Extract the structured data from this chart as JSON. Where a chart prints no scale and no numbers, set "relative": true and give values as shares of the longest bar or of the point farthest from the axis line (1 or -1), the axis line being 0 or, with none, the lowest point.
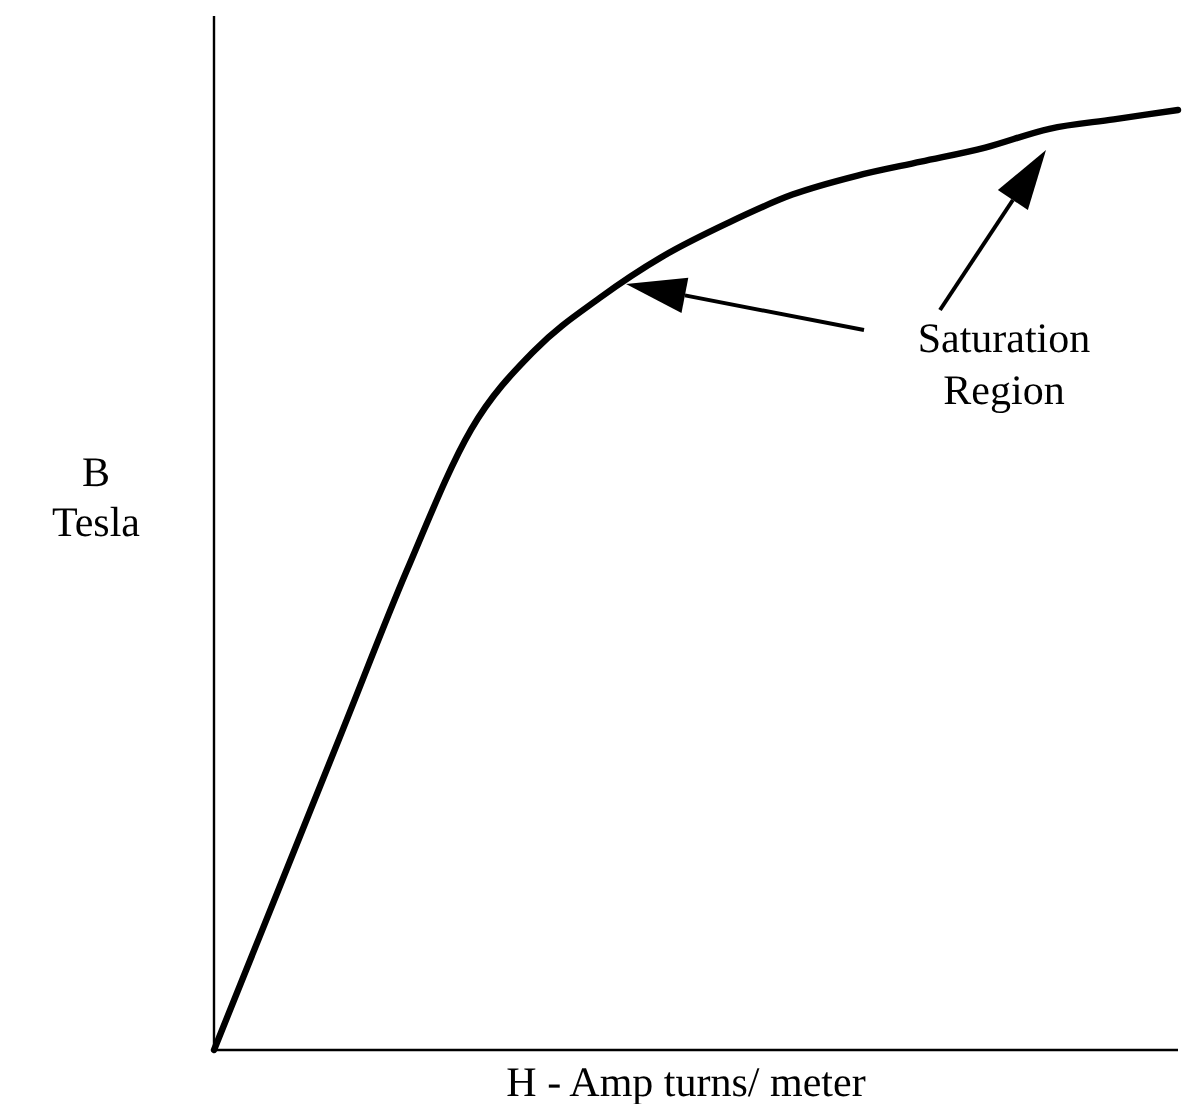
{
  "chart_data": {
    "type": "line",
    "relative": true,
    "xlabel": "H - Amp turns/ meter",
    "ylabel": "B\nTesla",
    "categories": [
      null,
      null,
      null,
      null,
      null,
      null,
      null,
      null,
      null,
      null,
      null,
      null,
      null,
      null,
      null,
      null
    ],
    "series": [
      {
        "color": "#000000",
        "values": [
          0,
          0.17,
          0.34,
          0.51,
          0.66,
          0.745,
          0.8,
          0.845,
          0.88,
          0.91,
          0.93,
          0.945,
          0.96,
          0.98,
          0.99,
          1
        ]
      }
    ],
    "annotations": [
      "Saturation\nRegion"
    ],
    "marker": "none",
    "line_style": "solid"
  }
}
